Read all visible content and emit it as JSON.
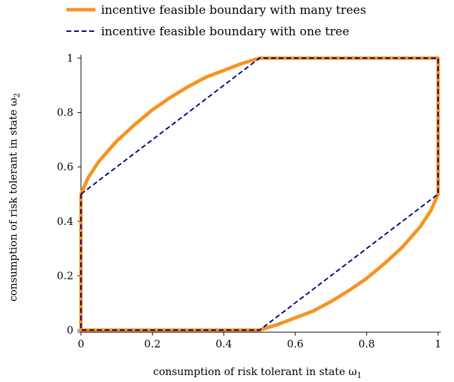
{
  "chart_data": {
    "type": "line",
    "xlabel": "consumption of risk tolerant in state ω",
    "xlabel_sub": "1",
    "ylabel": "consumption of risk tolerant in state ω",
    "ylabel_sub": "2",
    "xlim": [
      0,
      1
    ],
    "ylim": [
      0,
      1
    ],
    "x_ticks": [
      0,
      0.2,
      0.4,
      0.6,
      0.8,
      1
    ],
    "x_tick_labels": [
      "0",
      "0.2",
      "0.4",
      "0.6",
      "0.8",
      "1"
    ],
    "y_ticks": [
      0,
      0.2,
      0.4,
      0.6,
      0.8,
      1
    ],
    "y_tick_labels": [
      "0",
      "0.2",
      "0.4",
      "0.6",
      "0.8",
      "1"
    ],
    "grid": false,
    "legend_position": "top",
    "series": [
      {
        "name": "incentive feasible boundary with many trees",
        "color": "#f7931e",
        "style": "solid",
        "x": [
          0,
          0.02,
          0.05,
          0.1,
          0.15,
          0.2,
          0.25,
          0.3,
          0.35,
          0.4,
          0.45,
          0.5,
          1,
          1,
          0.98,
          0.95,
          0.9,
          0.85,
          0.8,
          0.75,
          0.7,
          0.65,
          0.6,
          0.55,
          0.5,
          0,
          0
        ],
        "y": [
          0.5,
          0.56,
          0.62,
          0.695,
          0.755,
          0.81,
          0.855,
          0.895,
          0.93,
          0.955,
          0.98,
          1,
          1,
          0.5,
          0.44,
          0.38,
          0.305,
          0.245,
          0.19,
          0.145,
          0.105,
          0.07,
          0.045,
          0.02,
          0,
          0,
          0.5
        ]
      },
      {
        "name": "incentive feasible boundary with one tree",
        "color": "#000080",
        "style": "dashed",
        "x": [
          0,
          0.5,
          1,
          1,
          0.5,
          0,
          0
        ],
        "y": [
          0.5,
          1,
          1,
          0.5,
          0,
          0,
          0.5
        ]
      }
    ]
  }
}
